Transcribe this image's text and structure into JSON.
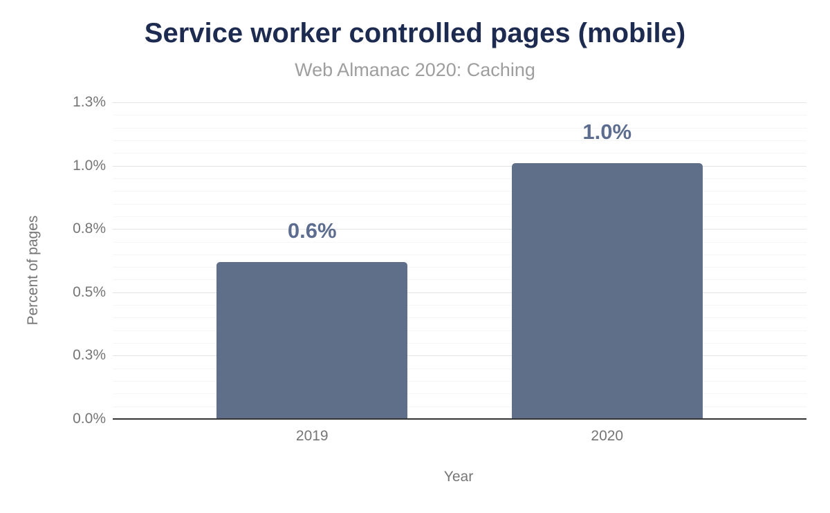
{
  "chart_data": {
    "type": "bar",
    "title": "Service worker controlled pages (mobile)",
    "subtitle": "Web Almanac 2020: Caching",
    "xlabel": "Year",
    "ylabel": "Percent of pages",
    "categories": [
      "2019",
      "2020"
    ],
    "values": [
      0.62,
      1.01
    ],
    "bar_labels": [
      "0.6%",
      "1.0%"
    ],
    "ylim": [
      0,
      1.25
    ],
    "y_ticks": [
      {
        "value": 0.0,
        "label": "0.0%"
      },
      {
        "value": 0.25,
        "label": "0.3%"
      },
      {
        "value": 0.5,
        "label": "0.5%"
      },
      {
        "value": 0.75,
        "label": "0.8%"
      },
      {
        "value": 1.0,
        "label": "1.0%"
      },
      {
        "value": 1.25,
        "label": "1.3%"
      }
    ],
    "minor_tick_step": 0.05,
    "grid": true,
    "legend_position": "none",
    "colors": {
      "bar": "#5f6e89",
      "title": "#1e2b50",
      "subtitle": "#9e9e9e",
      "axis_text": "#757575",
      "data_label": "#5d6d8f",
      "major_gridline": "#e3e3e3",
      "minor_gridline": "#f5f5f5",
      "axis_line": "#333333"
    }
  }
}
